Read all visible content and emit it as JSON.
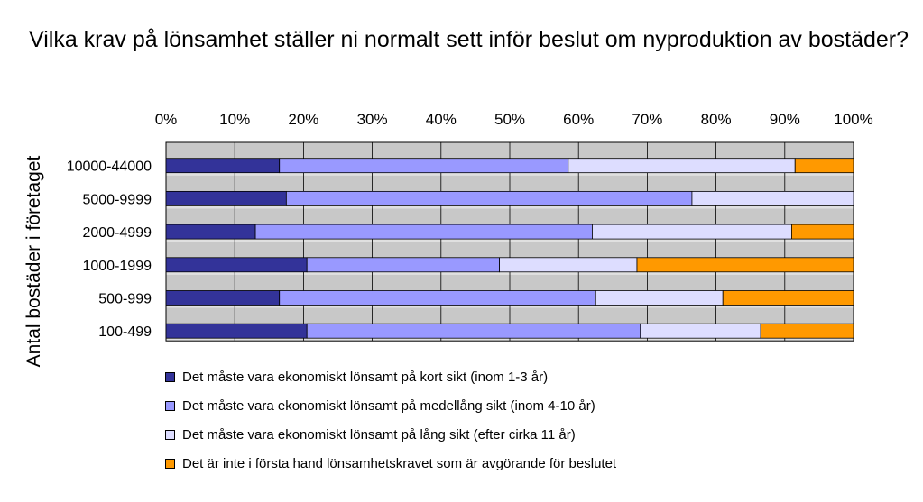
{
  "chart_data": {
    "type": "bar",
    "orientation": "horizontal",
    "stacked": "percent",
    "title": "Vilka krav på lönsamhet ställer ni normalt sett inför beslut om nyproduktion av bostäder?",
    "ylabel": "Antal bostäder i företaget",
    "xlim": [
      0,
      100
    ],
    "x_ticks": [
      "0%",
      "10%",
      "20%",
      "30%",
      "40%",
      "50%",
      "60%",
      "70%",
      "80%",
      "90%",
      "100%"
    ],
    "x_axis_position": "top",
    "grid": true,
    "legend_position": "bottom",
    "categories": [
      "10000-44000",
      "5000-9999",
      "2000-4999",
      "1000-1999",
      "500-999",
      "100-499"
    ],
    "series": [
      {
        "name": "Det måste vara ekonomiskt lönsamt på kort sikt (inom 1-3 år)",
        "color": "#333399",
        "values": [
          16.5,
          17.5,
          13,
          20.5,
          16.5,
          20.5
        ]
      },
      {
        "name": "Det måste vara ekonomiskt lönsamt på medellång sikt (inom 4-10 år)",
        "color": "#9999ff",
        "values": [
          42,
          59,
          49,
          28,
          46,
          48.5
        ]
      },
      {
        "name": "Det måste vara ekonomiskt lönsamt på lång sikt (efter cirka 11 år)",
        "color": "#ddddff",
        "values": [
          33,
          23.5,
          29,
          20,
          18.5,
          17.5
        ]
      },
      {
        "name": "Det är inte i första hand lönsamhetskravet som är avgörande för beslutet",
        "color": "#ff9900",
        "values": [
          8.5,
          0,
          9,
          31.5,
          19,
          13.5
        ]
      }
    ]
  }
}
